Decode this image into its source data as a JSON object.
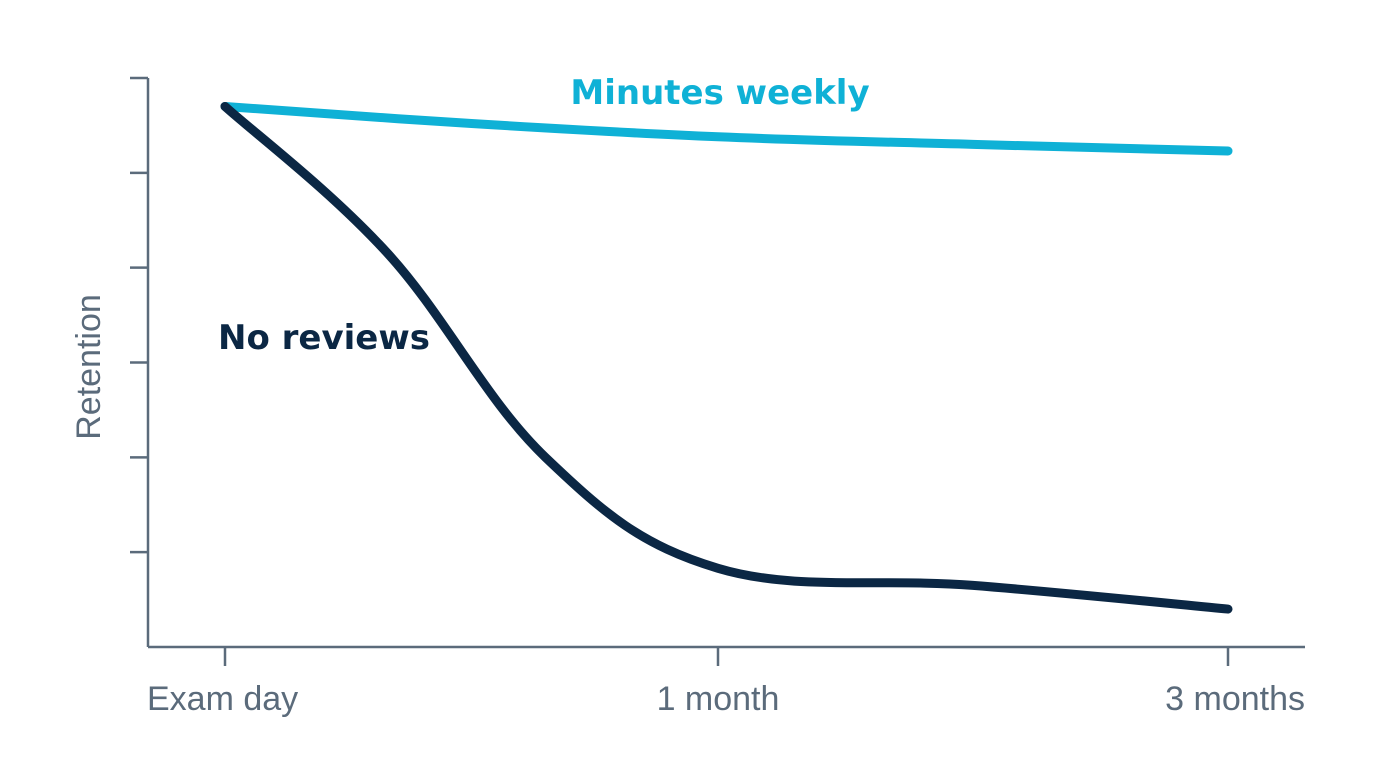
{
  "chart_data": {
    "type": "line",
    "ylabel": "Retention",
    "x_categories": [
      "Exam day",
      "1 month",
      "3 months"
    ],
    "x_positions": [
      0,
      1,
      3
    ],
    "xlim": [
      -0.15,
      3.15
    ],
    "ylim": [
      0,
      6
    ],
    "y_ticks": [
      1,
      2,
      3,
      4,
      5,
      6
    ],
    "series": [
      {
        "name": "Minutes weekly",
        "color": "#0fb1d6",
        "points": [
          [
            0,
            5.7
          ],
          [
            0.5,
            5.52
          ],
          [
            1,
            5.38
          ],
          [
            2,
            5.3
          ],
          [
            3,
            5.23
          ]
        ]
      },
      {
        "name": "No reviews",
        "color": "#0b2744",
        "points": [
          [
            0,
            5.7
          ],
          [
            0.33,
            4.15
          ],
          [
            0.65,
            2.0
          ],
          [
            1,
            0.83
          ],
          [
            2,
            0.65
          ],
          [
            3,
            0.4
          ]
        ]
      }
    ]
  }
}
